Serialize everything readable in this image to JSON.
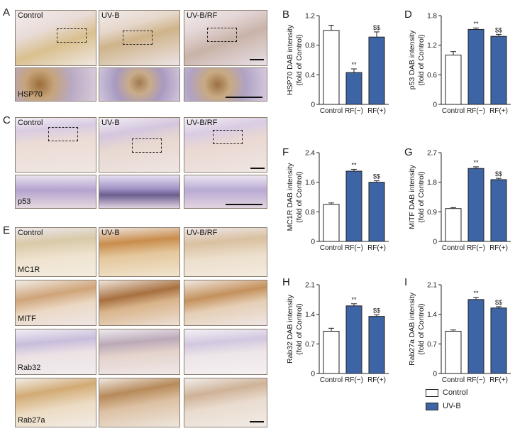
{
  "colors": {
    "control_fill": "#ffffff",
    "uvb_fill": "#3d64a4",
    "bar_stroke": "#222222"
  },
  "panel_letters": [
    "A",
    "B",
    "C",
    "D",
    "E",
    "F",
    "G",
    "H",
    "I"
  ],
  "micrographs": {
    "A": {
      "top_labels": [
        "Control",
        "UV-B",
        "UV-B/RF"
      ],
      "inset_label": "HSP70"
    },
    "C": {
      "top_labels": [
        "Control",
        "UV-B",
        "UV-B/RF"
      ],
      "inset_label": "p53"
    },
    "E": {
      "column_labels": [
        "Control",
        "UV-B",
        "UV-B/RF"
      ],
      "row_labels": [
        "MC1R",
        "MITF",
        "Rab32",
        "Rab27a"
      ]
    }
  },
  "legend": {
    "items": [
      {
        "label": "Control",
        "color": "#ffffff"
      },
      {
        "label": "UV-B",
        "color": "#3d64a4"
      }
    ]
  },
  "chart_data": [
    {
      "id": "B",
      "type": "bar",
      "ylabel": "HSP70 DAB intensity",
      "ylabel2": "(fold of Control)",
      "categories": [
        "Control",
        "RF(−)",
        "RF(+)"
      ],
      "values": [
        1.0,
        0.43,
        0.91
      ],
      "errors": [
        0.07,
        0.05,
        0.07
      ],
      "sig": [
        "",
        "**",
        "$$"
      ],
      "ylim": [
        0,
        1.2
      ],
      "yticks": [
        "0",
        "0.4",
        "0.8",
        "1.2"
      ],
      "fills": [
        "control",
        "uvb",
        "uvb"
      ]
    },
    {
      "id": "D",
      "type": "bar",
      "ylabel": "p53 DAB intensity",
      "ylabel2": "(fold of Control)",
      "categories": [
        "Control",
        "RF(−)",
        "RF(+)"
      ],
      "values": [
        1.0,
        1.52,
        1.38
      ],
      "errors": [
        0.07,
        0.03,
        0.04
      ],
      "sig": [
        "",
        "**",
        "$$"
      ],
      "ylim": [
        0,
        1.8
      ],
      "yticks": [
        "0",
        "0.6",
        "1.2",
        "1.8"
      ],
      "fills": [
        "control",
        "uvb",
        "uvb"
      ]
    },
    {
      "id": "F",
      "type": "bar",
      "ylabel": "MC1R DAB intensity",
      "ylabel2": "(fold of Control)",
      "categories": [
        "Control",
        "RF(−)",
        "RF(+)"
      ],
      "values": [
        1.0,
        1.9,
        1.6
      ],
      "errors": [
        0.04,
        0.05,
        0.04
      ],
      "sig": [
        "",
        "**",
        "$$"
      ],
      "ylim": [
        0,
        2.4
      ],
      "yticks": [
        "0",
        "0.8",
        "1.6",
        "2.4"
      ],
      "fills": [
        "control",
        "uvb",
        "uvb"
      ]
    },
    {
      "id": "G",
      "type": "bar",
      "ylabel": "MITF DAB intensity",
      "ylabel2": "(fold of Control)",
      "categories": [
        "Control",
        "RF(−)",
        "RF(+)"
      ],
      "values": [
        1.0,
        2.22,
        1.88
      ],
      "errors": [
        0.03,
        0.05,
        0.04
      ],
      "sig": [
        "",
        "**",
        "$$"
      ],
      "ylim": [
        0,
        2.7
      ],
      "yticks": [
        "0",
        "0.9",
        "1.8",
        "2.7"
      ],
      "fills": [
        "control",
        "uvb",
        "uvb"
      ]
    },
    {
      "id": "H",
      "type": "bar",
      "ylabel": "Rab32 DAB intensity",
      "ylabel2": "(fold of Control)",
      "categories": [
        "Control",
        "RF(−)",
        "RF(+)"
      ],
      "values": [
        1.0,
        1.6,
        1.35
      ],
      "errors": [
        0.07,
        0.05,
        0.04
      ],
      "sig": [
        "",
        "**",
        "$$"
      ],
      "ylim": [
        0,
        2.1
      ],
      "yticks": [
        "0",
        "0.7",
        "1.4",
        "2.1"
      ],
      "fills": [
        "control",
        "uvb",
        "uvb"
      ]
    },
    {
      "id": "I",
      "type": "bar",
      "ylabel": "Rab27a DAB intensity",
      "ylabel2": "(fold of Control)",
      "categories": [
        "Control",
        "RF(−)",
        "RF(+)"
      ],
      "values": [
        1.0,
        1.75,
        1.55
      ],
      "errors": [
        0.03,
        0.05,
        0.03
      ],
      "sig": [
        "",
        "**",
        "$$"
      ],
      "ylim": [
        0,
        2.1
      ],
      "yticks": [
        "0",
        "0.7",
        "1.4",
        "2.1"
      ],
      "fills": [
        "control",
        "uvb",
        "uvb"
      ]
    }
  ]
}
